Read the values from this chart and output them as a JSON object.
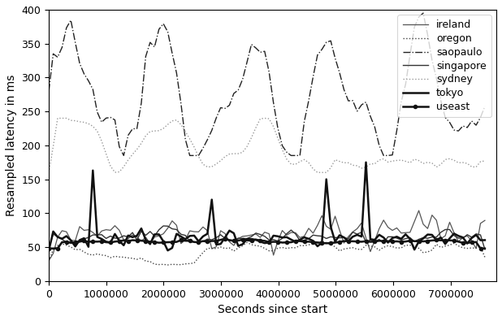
{
  "title": "",
  "xlabel": "Seconds since start",
  "ylabel": "Resampled latency in ms",
  "xlim": [
    0,
    7800000
  ],
  "ylim": [
    0,
    400
  ],
  "yticks": [
    0,
    50,
    100,
    150,
    200,
    250,
    300,
    350,
    400
  ],
  "regions": [
    "ireland",
    "oregon",
    "saopaulo",
    "singapore",
    "sydney",
    "tokyo",
    "useast"
  ],
  "line_styles": {
    "ireland": {
      "linestyle": "-",
      "linewidth": 0.9,
      "marker": "None",
      "color": "#555555"
    },
    "oregon": {
      "linestyle": ":",
      "linewidth": 1.0,
      "marker": "None",
      "color": "#444444"
    },
    "saopaulo": {
      "linestyle": "-.",
      "linewidth": 1.0,
      "marker": "None",
      "color": "#222222"
    },
    "singapore": {
      "linestyle": "-",
      "linewidth": 1.0,
      "marker": "None",
      "color": "#333333"
    },
    "sydney": {
      "linestyle": ":",
      "linewidth": 1.0,
      "marker": "None",
      "color": "#999999"
    },
    "tokyo": {
      "linestyle": "-",
      "linewidth": 1.8,
      "marker": "None",
      "color": "#111111"
    },
    "useast": {
      "linestyle": "-",
      "linewidth": 1.8,
      "marker": "o",
      "markersize": 3,
      "color": "#111111"
    }
  },
  "legend_loc": "upper right",
  "background_color": "#ffffff",
  "grid": false
}
